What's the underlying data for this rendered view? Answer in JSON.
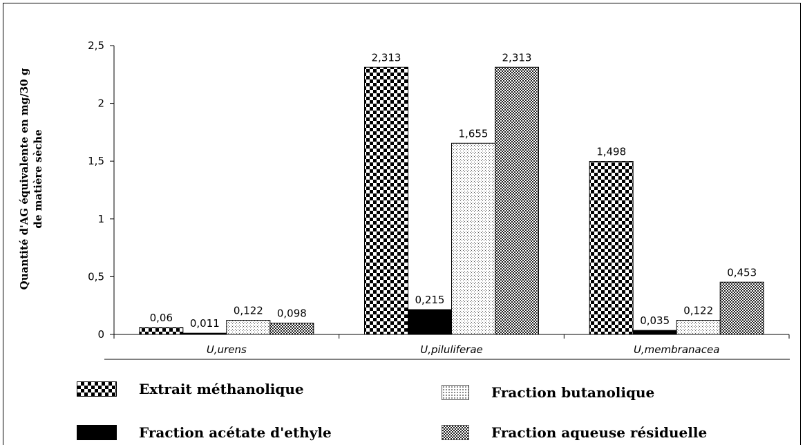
{
  "chart_data": {
    "type": "bar",
    "ylabel": "Quantité d'AG équivalente en mg/30 g de matière sèche",
    "ylabel_lines": [
      "Quantité d'AG équivalente en mg/30 g",
      "de matière sèche"
    ],
    "ylim": [
      0,
      2.5
    ],
    "yticks": [
      "0",
      "0,5",
      "1",
      "1,5",
      "2",
      "2,5"
    ],
    "ytick_values": [
      0,
      0.5,
      1,
      1.5,
      2,
      2.5
    ],
    "categories": [
      "U,urens",
      "U,piluliferae",
      "U,membranacea"
    ],
    "series": [
      {
        "name": "Extrait méthanolique",
        "values": [
          0.06,
          2.313,
          1.498
        ],
        "labels": [
          "0,06",
          "2,313",
          "1,498"
        ],
        "pattern": "checker-large"
      },
      {
        "name": "Fraction acétate d'ethyle",
        "values": [
          0.011,
          0.215,
          0.035
        ],
        "labels": [
          "0,011",
          "0,215",
          "0,035"
        ],
        "pattern": "solid-black"
      },
      {
        "name": "Fraction butanolique",
        "values": [
          0.122,
          1.655,
          0.122
        ],
        "labels": [
          "0,122",
          "1,655",
          "0,122"
        ],
        "pattern": "fine-dots"
      },
      {
        "name": "Fraction aqueuse résiduelle",
        "values": [
          0.098,
          2.313,
          0.453
        ],
        "labels": [
          "0,098",
          "2,313",
          "0,453"
        ],
        "pattern": "checker-small"
      }
    ],
    "grid": false,
    "legend_position": "bottom"
  }
}
